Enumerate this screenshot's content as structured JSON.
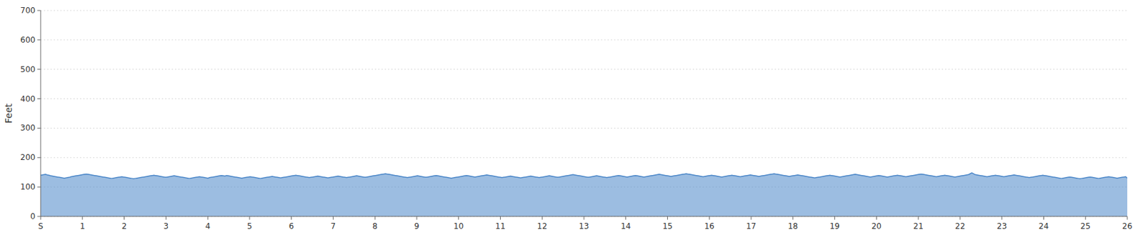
{
  "chart_data": {
    "type": "area",
    "y_label": "Feet",
    "color": "#4a86c8",
    "grid": true,
    "xlim": [
      0,
      26
    ],
    "xticks": [
      {
        "value": 0,
        "label": "S"
      },
      1,
      2,
      3,
      4,
      5,
      6,
      7,
      8,
      9,
      10,
      11,
      12,
      13,
      14,
      15,
      16,
      17,
      18,
      19,
      20,
      21,
      22,
      23,
      24,
      25,
      26
    ],
    "ylim": [
      0,
      700
    ],
    "yticks": [
      0,
      100,
      200,
      300,
      400,
      500,
      600,
      700
    ],
    "values": [
      140,
      141,
      142,
      143,
      141,
      140,
      138,
      137,
      136,
      135,
      134,
      133,
      132,
      131,
      130,
      131,
      132,
      133,
      135,
      136,
      137,
      138,
      139,
      140,
      141,
      142,
      143,
      144,
      143,
      142,
      141,
      140,
      139,
      138,
      137,
      136,
      135,
      134,
      133,
      132,
      131,
      130,
      129,
      130,
      131,
      132,
      133,
      134,
      135,
      134,
      133,
      132,
      131,
      130,
      129,
      128,
      129,
      130,
      131,
      132,
      133,
      134,
      135,
      136,
      137,
      138,
      139,
      140,
      139,
      138,
      137,
      136,
      135,
      134,
      133,
      134,
      135,
      136,
      137,
      138,
      137,
      136,
      135,
      134,
      133,
      132,
      131,
      130,
      129,
      130,
      131,
      132,
      133,
      134,
      135,
      134,
      133,
      132,
      131,
      130,
      132,
      133,
      134,
      135,
      136,
      137,
      138,
      139,
      138,
      137,
      139,
      138,
      137,
      136,
      135,
      134,
      133,
      132,
      131,
      130,
      131,
      132,
      133,
      134,
      135,
      134,
      133,
      132,
      131,
      130,
      129,
      130,
      131,
      132,
      133,
      134,
      135,
      136,
      135,
      134,
      133,
      132,
      131,
      132,
      133,
      134,
      135,
      136,
      137,
      138,
      139,
      140,
      139,
      138,
      137,
      136,
      135,
      134,
      133,
      132,
      133,
      134,
      135,
      136,
      137,
      136,
      135,
      134,
      133,
      132,
      131,
      132,
      133,
      134,
      135,
      136,
      137,
      136,
      135,
      134,
      133,
      132,
      133,
      134,
      135,
      136,
      137,
      138,
      137,
      136,
      135,
      134,
      133,
      134,
      135,
      136,
      137,
      138,
      139,
      140,
      141,
      142,
      143,
      144,
      145,
      144,
      143,
      142,
      141,
      140,
      139,
      138,
      137,
      136,
      135,
      134,
      133,
      132,
      133,
      134,
      135,
      136,
      137,
      138,
      137,
      136,
      135,
      134,
      133,
      134,
      135,
      136,
      137,
      138,
      139,
      138,
      137,
      136,
      135,
      134,
      133,
      132,
      131,
      130,
      131,
      132,
      133,
      134,
      135,
      136,
      137,
      138,
      139,
      138,
      137,
      136,
      135,
      134,
      135,
      136,
      137,
      138,
      139,
      140,
      141,
      140,
      139,
      138,
      137,
      136,
      135,
      134,
      133,
      132,
      133,
      134,
      135,
      136,
      137,
      136,
      135,
      134,
      133,
      132,
      131,
      132,
      133,
      134,
      135,
      136,
      137,
      136,
      135,
      134,
      133,
      132,
      133,
      134,
      135,
      136,
      137,
      138,
      137,
      136,
      135,
      134,
      133,
      134,
      135,
      136,
      137,
      138,
      139,
      140,
      141,
      142,
      141,
      140,
      139,
      138,
      137,
      136,
      135,
      134,
      133,
      134,
      135,
      136,
      137,
      138,
      137,
      136,
      135,
      134,
      133,
      132,
      133,
      134,
      135,
      136,
      137,
      138,
      139,
      138,
      137,
      136,
      135,
      134,
      135,
      136,
      137,
      138,
      139,
      138,
      137,
      136,
      135,
      134,
      135,
      136,
      137,
      138,
      139,
      140,
      141,
      142,
      143,
      142,
      141,
      140,
      139,
      138,
      137,
      136,
      137,
      138,
      139,
      140,
      141,
      142,
      143,
      144,
      145,
      144,
      143,
      142,
      141,
      140,
      139,
      138,
      137,
      136,
      135,
      136,
      137,
      138,
      139,
      140,
      139,
      138,
      137,
      136,
      135,
      134,
      135,
      136,
      137,
      138,
      139,
      140,
      139,
      138,
      137,
      136,
      135,
      136,
      137,
      138,
      139,
      140,
      141,
      140,
      139,
      138,
      137,
      136,
      137,
      138,
      139,
      140,
      141,
      142,
      143,
      144,
      145,
      144,
      143,
      142,
      141,
      140,
      139,
      138,
      137,
      136,
      137,
      138,
      139,
      140,
      141,
      140,
      139,
      138,
      137,
      136,
      135,
      134,
      133,
      132,
      131,
      132,
      133,
      134,
      135,
      136,
      137,
      138,
      139,
      140,
      139,
      138,
      137,
      136,
      135,
      134,
      135,
      136,
      137,
      138,
      139,
      140,
      141,
      142,
      143,
      142,
      141,
      140,
      139,
      138,
      137,
      136,
      135,
      134,
      135,
      136,
      137,
      138,
      139,
      138,
      137,
      136,
      135,
      134,
      135,
      136,
      137,
      138,
      139,
      140,
      139,
      138,
      137,
      136,
      135,
      136,
      137,
      138,
      139,
      140,
      141,
      142,
      143,
      144,
      143,
      142,
      141,
      140,
      139,
      138,
      137,
      136,
      135,
      136,
      137,
      138,
      139,
      140,
      139,
      138,
      137,
      136,
      135,
      134,
      135,
      136,
      137,
      138,
      139,
      140,
      141,
      142,
      145,
      148,
      145,
      142,
      141,
      140,
      139,
      138,
      137,
      136,
      135,
      136,
      137,
      138,
      139,
      140,
      139,
      138,
      137,
      136,
      135,
      136,
      137,
      138,
      139,
      140,
      141,
      140,
      139,
      138,
      137,
      136,
      135,
      134,
      133,
      132,
      133,
      134,
      135,
      136,
      137,
      138,
      139,
      140,
      139,
      138,
      137,
      136,
      135,
      134,
      133,
      132,
      131,
      130,
      129,
      130,
      131,
      132,
      133,
      134,
      133,
      132,
      131,
      130,
      129,
      128,
      129,
      130,
      131,
      132,
      133,
      134,
      133,
      132,
      131,
      130,
      129,
      130,
      131,
      132,
      133,
      134,
      135,
      134,
      133,
      132,
      131,
      130,
      131,
      132,
      133,
      134,
      135,
      130
    ]
  }
}
